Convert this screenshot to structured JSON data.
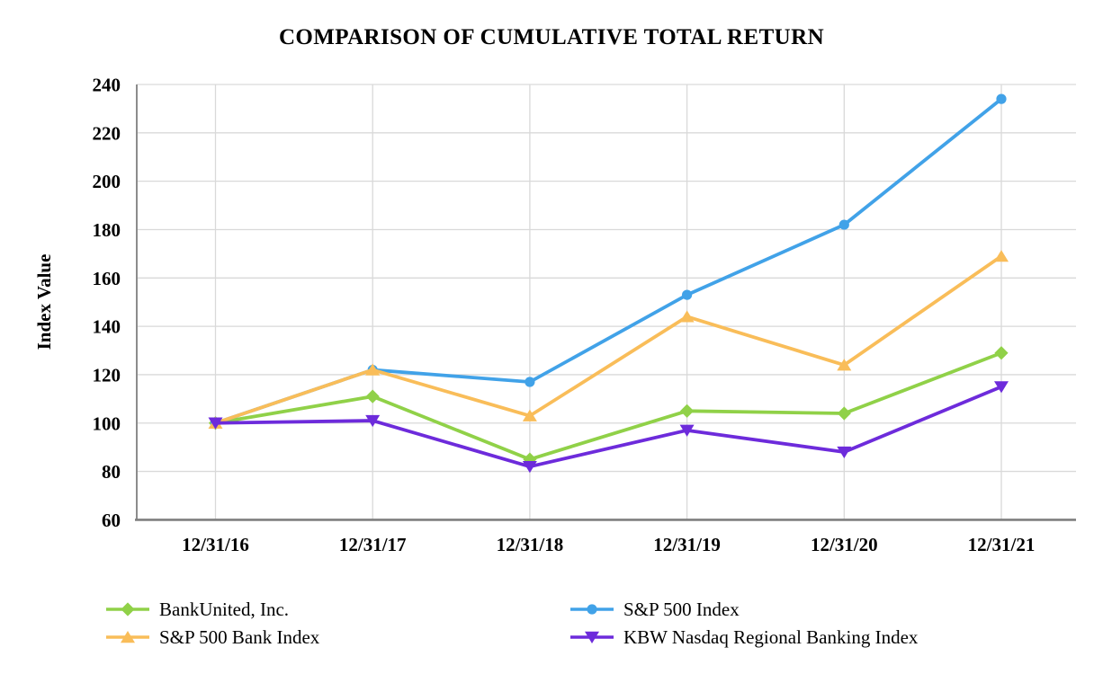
{
  "title": "COMPARISON OF CUMULATIVE TOTAL RETURN",
  "y_axis": {
    "label": "Index Value",
    "ticks": [
      60,
      80,
      100,
      120,
      140,
      160,
      180,
      200,
      220,
      240
    ]
  },
  "x_axis": {
    "labels": [
      "12/31/16",
      "12/31/17",
      "12/31/18",
      "12/31/19",
      "12/31/20",
      "12/31/21"
    ]
  },
  "colors": {
    "grid": "#D9D9D9",
    "axis": "#8C8C8C",
    "baseline": "#7F7F7F",
    "text": "#000000",
    "background": "#FFFFFF"
  },
  "chart_data": {
    "type": "line",
    "title": "COMPARISON OF CUMULATIVE TOTAL RETURN",
    "xlabel": "",
    "ylabel": "Index Value",
    "ylim": [
      60,
      240
    ],
    "ytick_step": 20,
    "grid": true,
    "legend_position": "bottom",
    "categories": [
      "12/31/16",
      "12/31/17",
      "12/31/18",
      "12/31/19",
      "12/31/20",
      "12/31/21"
    ],
    "series": [
      {
        "name": "BankUnited, Inc.",
        "color": "#90D148",
        "marker": "diamond",
        "values": [
          100,
          111,
          85,
          105,
          104,
          129
        ]
      },
      {
        "name": "S&P 500 Index",
        "color": "#41A2E8",
        "marker": "circle",
        "values": [
          100,
          122,
          117,
          153,
          182,
          234
        ]
      },
      {
        "name": "S&P 500 Bank Index",
        "color": "#F9BD59",
        "marker": "triangle-up",
        "values": [
          100,
          122,
          103,
          144,
          124,
          169
        ]
      },
      {
        "name": "KBW Nasdaq Regional Banking Index",
        "color": "#6D2BDB",
        "marker": "triangle-down",
        "values": [
          100,
          101,
          82,
          97,
          88,
          115
        ]
      }
    ]
  }
}
